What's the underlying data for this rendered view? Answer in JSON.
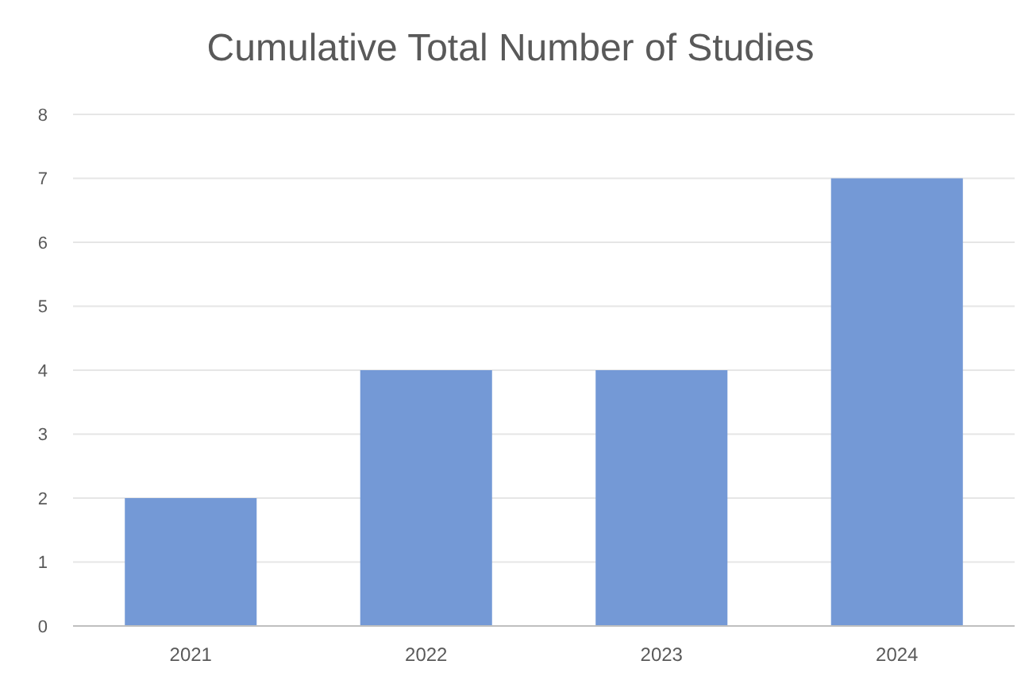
{
  "chart_data": {
    "type": "bar",
    "title": "Cumulative Total Number of Studies",
    "categories": [
      "2021",
      "2022",
      "2023",
      "2024"
    ],
    "values": [
      2,
      4,
      4,
      7
    ],
    "color": "#7499d6",
    "ylim": [
      0,
      8
    ],
    "yticks": [
      0,
      1,
      2,
      3,
      4,
      5,
      6,
      7,
      8
    ],
    "grid": "y"
  }
}
